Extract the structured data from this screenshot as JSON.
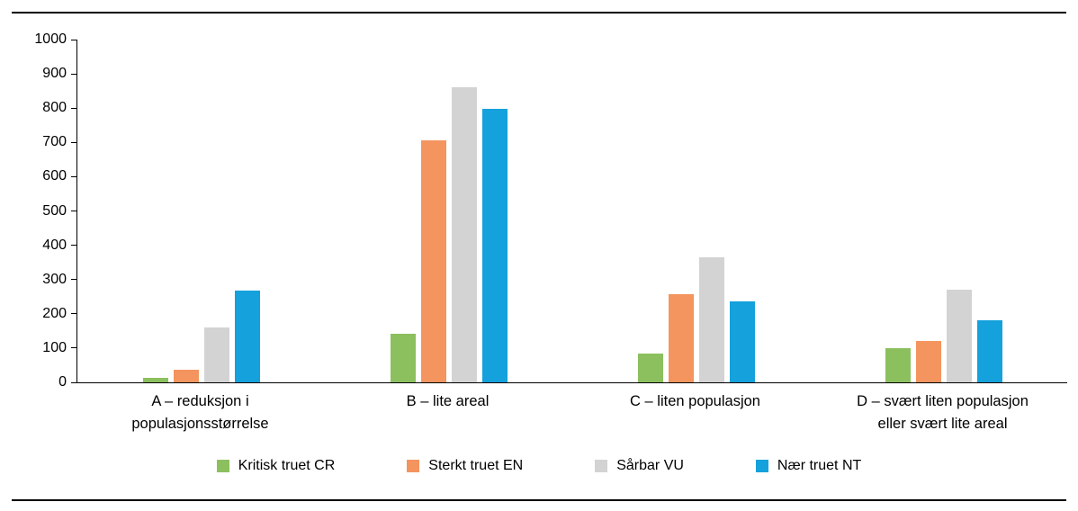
{
  "chart_data": {
    "type": "bar",
    "title": "",
    "xlabel": "",
    "ylabel": "",
    "ylim": [
      0,
      1000
    ],
    "y_ticks": [
      0,
      100,
      200,
      300,
      400,
      500,
      600,
      700,
      800,
      900,
      1000
    ],
    "grid": false,
    "legend_position": "bottom",
    "categories": [
      "A – reduksjon i\npopulasjonsstørrelse",
      "B – lite areal",
      "C – liten populasjon",
      "D – svært liten populasjon\neller svært lite areal"
    ],
    "series": [
      {
        "name": "Kritisk truet CR",
        "color": "#8CC05F",
        "values": [
          13,
          142,
          84,
          100
        ]
      },
      {
        "name": "Sterkt truet EN",
        "color": "#F4945E",
        "values": [
          37,
          706,
          257,
          121
        ]
      },
      {
        "name": "Sårbar VU",
        "color": "#D3D3D3",
        "values": [
          160,
          861,
          365,
          270
        ]
      },
      {
        "name": "Nær truet NT",
        "color": "#14A1DC",
        "values": [
          268,
          798,
          236,
          181
        ]
      }
    ]
  },
  "frame": {
    "top_rule": true,
    "bottom_rule": true
  }
}
